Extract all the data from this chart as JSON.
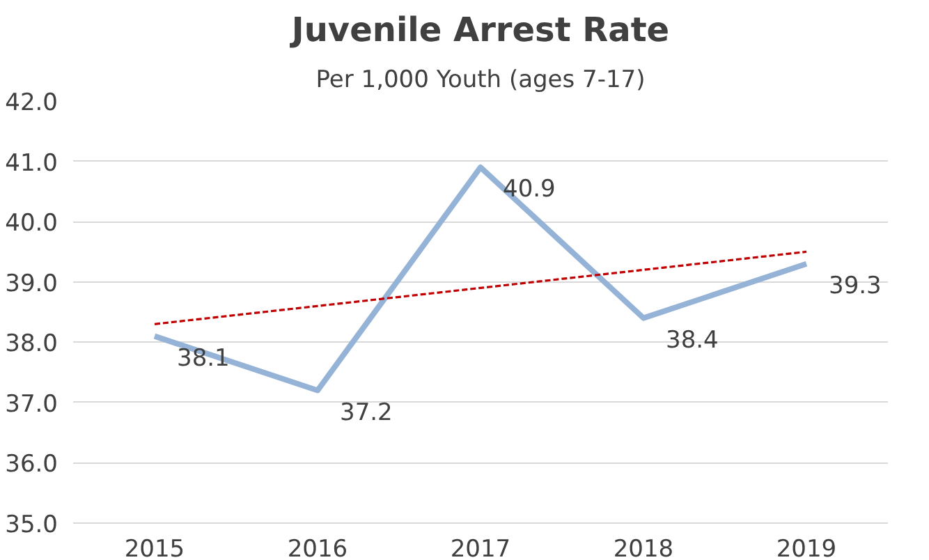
{
  "chart_data": {
    "type": "line",
    "title": "Juvenile Arrest Rate",
    "subtitle": "Per 1,000 Youth (ages 7-17)",
    "categories": [
      "2015",
      "2016",
      "2017",
      "2018",
      "2019"
    ],
    "series": [
      {
        "color": "#95b3d7",
        "values": [
          38.1,
          37.2,
          40.9,
          38.4,
          39.3
        ],
        "data_labels": true,
        "line_style": "solid"
      },
      {
        "color": "#c00000",
        "values": [
          38.3,
          38.6,
          38.9,
          39.2,
          39.5
        ],
        "line_style": "dashed"
      }
    ],
    "ylim": [
      35,
      42
    ],
    "yticks": [
      {
        "value": 35,
        "label": "35.0"
      },
      {
        "value": 36,
        "label": "36.0"
      },
      {
        "value": 37,
        "label": "37.0"
      },
      {
        "value": 38,
        "label": "38.0"
      },
      {
        "value": 39,
        "label": "39.0"
      },
      {
        "value": 40,
        "label": "40.0"
      },
      {
        "value": 41,
        "label": "41.0"
      },
      {
        "value": 42,
        "label": "42.0"
      }
    ],
    "grid": "y",
    "marker": "none"
  }
}
